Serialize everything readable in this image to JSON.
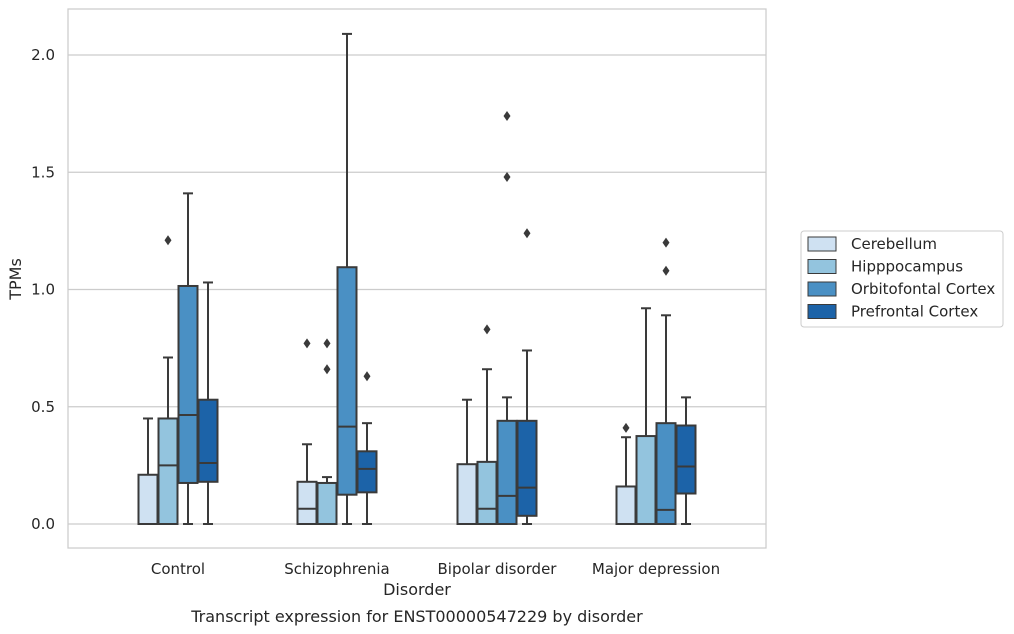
{
  "chart_data": {
    "type": "box",
    "title": "",
    "caption": "Transcript expression for ENST00000547229 by disorder",
    "xlabel": "Disorder",
    "ylabel": "TPMs",
    "ylim": [
      -0.1,
      2.2
    ],
    "yticks": [
      0.0,
      0.5,
      1.0,
      1.5,
      2.0
    ],
    "ytick_labels": [
      "0.0",
      "0.5",
      "1.0",
      "1.5",
      "2.0"
    ],
    "grid": "horizontal",
    "legend_position": "right",
    "categories": [
      "Control",
      "Schizophrenia",
      "Bipolar disorder",
      "Major depression"
    ],
    "series": [
      {
        "name": "Cerebellum",
        "color": "#cfe1f2",
        "boxes": [
          {
            "whisker_low": 0.0,
            "q1": 0.0,
            "median": 0.0,
            "q3": 0.21,
            "whisker_high": 0.45,
            "outliers": []
          },
          {
            "whisker_low": 0.0,
            "q1": 0.0,
            "median": 0.065,
            "q3": 0.18,
            "whisker_high": 0.34,
            "outliers": [
              0.77
            ]
          },
          {
            "whisker_low": 0.0,
            "q1": 0.0,
            "median": 0.0,
            "q3": 0.255,
            "whisker_high": 0.53,
            "outliers": []
          },
          {
            "whisker_low": 0.0,
            "q1": 0.0,
            "median": 0.0,
            "q3": 0.16,
            "whisker_high": 0.37,
            "outliers": [
              0.41
            ]
          }
        ]
      },
      {
        "name": "Hipppocampus",
        "color": "#93c4de",
        "boxes": [
          {
            "whisker_low": 0.0,
            "q1": 0.0,
            "median": 0.25,
            "q3": 0.45,
            "whisker_high": 0.71,
            "outliers": [
              1.21
            ]
          },
          {
            "whisker_low": 0.0,
            "q1": 0.0,
            "median": 0.0,
            "q3": 0.175,
            "whisker_high": 0.2,
            "outliers": [
              0.66,
              0.77
            ]
          },
          {
            "whisker_low": 0.0,
            "q1": 0.0,
            "median": 0.065,
            "q3": 0.265,
            "whisker_high": 0.66,
            "outliers": [
              0.83
            ]
          },
          {
            "whisker_low": 0.0,
            "q1": 0.0,
            "median": 0.0,
            "q3": 0.375,
            "whisker_high": 0.92,
            "outliers": []
          }
        ]
      },
      {
        "name": "Orbitofontal Cortex",
        "color": "#4a90c4",
        "boxes": [
          {
            "whisker_low": 0.0,
            "q1": 0.175,
            "median": 0.465,
            "q3": 1.015,
            "whisker_high": 1.41,
            "outliers": []
          },
          {
            "whisker_low": 0.0,
            "q1": 0.125,
            "median": 0.415,
            "q3": 1.095,
            "whisker_high": 2.09,
            "outliers": []
          },
          {
            "whisker_low": 0.0,
            "q1": 0.0,
            "median": 0.12,
            "q3": 0.44,
            "whisker_high": 0.54,
            "outliers": [
              1.48,
              1.74
            ]
          },
          {
            "whisker_low": 0.0,
            "q1": 0.0,
            "median": 0.06,
            "q3": 0.43,
            "whisker_high": 0.89,
            "outliers": [
              1.08,
              1.2
            ]
          }
        ]
      },
      {
        "name": "Prefrontal Cortex",
        "color": "#1c63a8",
        "boxes": [
          {
            "whisker_low": 0.0,
            "q1": 0.18,
            "median": 0.26,
            "q3": 0.53,
            "whisker_high": 1.03,
            "outliers": []
          },
          {
            "whisker_low": 0.0,
            "q1": 0.135,
            "median": 0.235,
            "q3": 0.31,
            "whisker_high": 0.43,
            "outliers": [
              0.63
            ]
          },
          {
            "whisker_low": 0.0,
            "q1": 0.035,
            "median": 0.155,
            "q3": 0.44,
            "whisker_high": 0.74,
            "outliers": [
              1.24
            ]
          },
          {
            "whisker_low": 0.0,
            "q1": 0.13,
            "median": 0.245,
            "q3": 0.42,
            "whisker_high": 0.54,
            "outliers": []
          }
        ]
      }
    ]
  }
}
